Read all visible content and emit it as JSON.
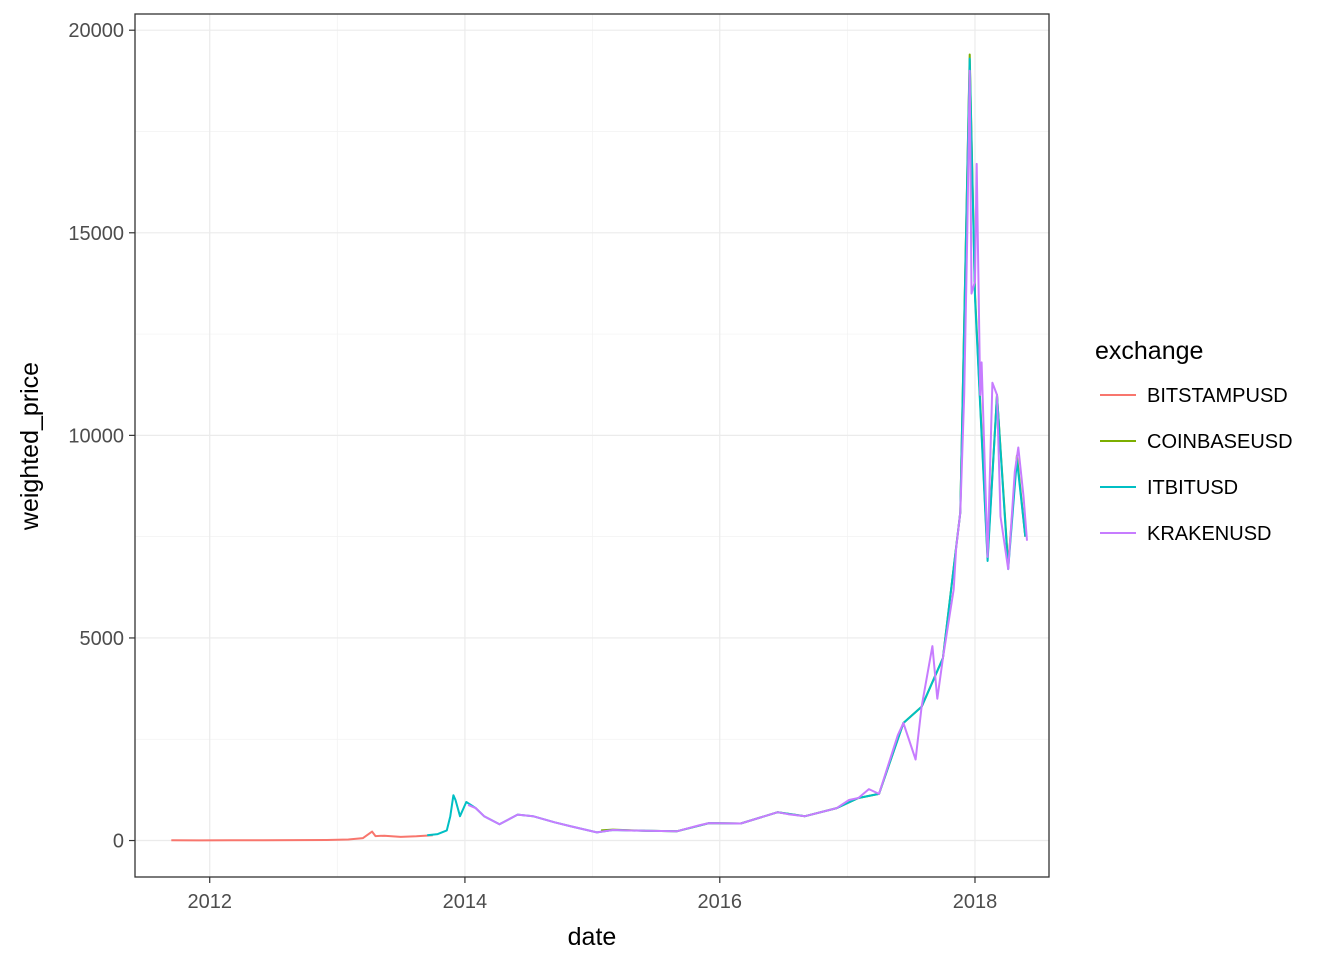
{
  "chart_data": {
    "type": "line",
    "title": "",
    "xlabel": "date",
    "ylabel": "weighted_price",
    "xlim": [
      "2011-06-01",
      "2018-08-01"
    ],
    "ylim": [
      -900,
      20400
    ],
    "x_ticks": [
      "2012",
      "2014",
      "2016",
      "2018"
    ],
    "y_ticks": [
      "0",
      "5000",
      "10000",
      "15000",
      "20000"
    ],
    "grid": true,
    "legend": {
      "title": "exchange",
      "position": "right"
    },
    "series": [
      {
        "name": "BITSTAMPUSD",
        "color": "#F8766D",
        "x": [
          "2011-09-13",
          "2011-12-01",
          "2012-03-01",
          "2012-06-01",
          "2012-09-01",
          "2012-12-01",
          "2013-02-01",
          "2013-03-15",
          "2013-04-10",
          "2013-04-20",
          "2013-05-15",
          "2013-07-01",
          "2013-08-15",
          "2013-10-01"
        ],
        "y": [
          5,
          3,
          5,
          6,
          11,
          13,
          25,
          60,
          220,
          110,
          120,
          90,
          105,
          130
        ]
      },
      {
        "name": "COINBASEUSD",
        "color": "#7CAE00",
        "x": [
          "2015-01-26",
          "2015-03-01",
          "2015-06-01",
          "2015-09-01",
          "2015-12-01",
          "2016-03-01",
          "2016-06-15",
          "2016-09-01",
          "2016-12-01",
          "2017-02-01",
          "2017-04-01",
          "2017-06-10",
          "2017-08-01",
          "2017-10-01",
          "2017-11-20",
          "2017-12-17",
          "2018-01-01",
          "2018-02-06",
          "2018-03-05",
          "2018-04-06",
          "2018-05-01",
          "2018-05-25"
        ],
        "y": [
          250,
          270,
          240,
          230,
          430,
          420,
          700,
          600,
          800,
          1050,
          1150,
          2900,
          3300,
          4500,
          8100,
          19400,
          13500,
          7000,
          11000,
          6800,
          9500,
          7500
        ]
      },
      {
        "name": "ITBITUSD",
        "color": "#00BFC4",
        "x": [
          "2013-09-15",
          "2013-10-15",
          "2013-11-10",
          "2013-11-20",
          "2013-11-29",
          "2013-12-05",
          "2013-12-18",
          "2014-01-05",
          "2014-02-01",
          "2014-02-25",
          "2014-04-10",
          "2014-06-01",
          "2014-07-15",
          "2014-09-15",
          "2014-11-01",
          "2015-01-14",
          "2015-03-01",
          "2015-06-01",
          "2015-09-01",
          "2015-12-01",
          "2016-03-01",
          "2016-06-15",
          "2016-09-01",
          "2016-12-01",
          "2017-02-01",
          "2017-04-01",
          "2017-06-10",
          "2017-08-01",
          "2017-10-01",
          "2017-11-20",
          "2017-12-17",
          "2018-01-01",
          "2018-02-06",
          "2018-03-05",
          "2018-04-06",
          "2018-05-01",
          "2018-05-25"
        ],
        "y": [
          130,
          160,
          250,
          600,
          1120,
          1000,
          600,
          950,
          800,
          600,
          400,
          640,
          600,
          450,
          350,
          200,
          260,
          240,
          230,
          430,
          420,
          700,
          600,
          800,
          1050,
          1150,
          2900,
          3300,
          4500,
          8100,
          19300,
          13400,
          6900,
          11000,
          6700,
          9400,
          7500
        ]
      },
      {
        "name": "KRAKENUSD",
        "color": "#C77CFF",
        "x": [
          "2014-01-10",
          "2014-02-01",
          "2014-02-25",
          "2014-04-10",
          "2014-06-01",
          "2014-07-15",
          "2014-09-15",
          "2014-11-01",
          "2015-01-14",
          "2015-03-01",
          "2015-06-01",
          "2015-09-01",
          "2015-11-05",
          "2015-12-01",
          "2016-03-01",
          "2016-06-15",
          "2016-07-15",
          "2016-09-01",
          "2016-12-01",
          "2017-01-05",
          "2017-02-01",
          "2017-03-03",
          "2017-04-01",
          "2017-05-25",
          "2017-06-10",
          "2017-07-15",
          "2017-08-01",
          "2017-09-01",
          "2017-09-15",
          "2017-10-01",
          "2017-11-01",
          "2017-11-08",
          "2017-11-20",
          "2017-12-01",
          "2017-12-10",
          "2017-12-17",
          "2017-12-22",
          "2018-01-01",
          "2018-01-06",
          "2018-01-16",
          "2018-01-20",
          "2018-02-06",
          "2018-02-20",
          "2018-03-05",
          "2018-03-15",
          "2018-04-06",
          "2018-04-25",
          "2018-05-05",
          "2018-05-20",
          "2018-05-30"
        ],
        "y": [
          880,
          800,
          600,
          400,
          640,
          600,
          450,
          350,
          200,
          260,
          240,
          230,
          380,
          430,
          420,
          700,
          650,
          600,
          800,
          1000,
          1050,
          1270,
          1150,
          2600,
          2900,
          2000,
          3300,
          4800,
          3500,
          4500,
          6200,
          7200,
          8100,
          11000,
          15000,
          19000,
          13500,
          13800,
          16700,
          11000,
          11800,
          7000,
          11300,
          11000,
          8000,
          6700,
          9100,
          9700,
          8500,
          7400
        ]
      }
    ]
  }
}
